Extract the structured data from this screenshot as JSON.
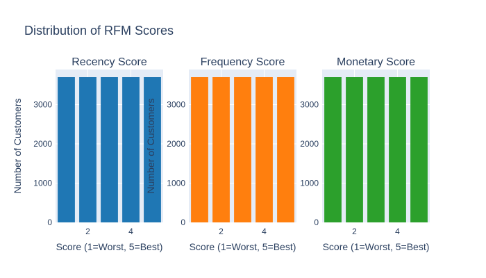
{
  "figure": {
    "title": "Distribution of RFM Scores",
    "background": "#ffffff",
    "plot_background": "#e5ecf6",
    "grid_color": "#ffffff",
    "text_color": "#2a3f5f"
  },
  "chart_data": [
    {
      "type": "bar",
      "title": "Recency Score",
      "categories": [
        1,
        2,
        3,
        4,
        5
      ],
      "values": [
        3700,
        3700,
        3700,
        3700,
        3700
      ],
      "color": "#1f77b4",
      "xlabel": "Score (1=Worst, 5=Best)",
      "ylabel": "Number of Customers",
      "xlim": [
        0.5,
        5.5
      ],
      "ylim": [
        0,
        3895
      ],
      "xticks": [
        2,
        4
      ],
      "yticks": [
        0,
        1000,
        2000,
        3000
      ],
      "grid": true
    },
    {
      "type": "bar",
      "title": "Frequency Score",
      "categories": [
        1,
        2,
        3,
        4,
        5
      ],
      "values": [
        3700,
        3700,
        3700,
        3700,
        3700
      ],
      "color": "#ff7f0e",
      "xlabel": "Score (1=Worst, 5=Best)",
      "ylabel": "Number of Customers",
      "xlim": [
        0.5,
        5.5
      ],
      "ylim": [
        0,
        3895
      ],
      "xticks": [
        2,
        4
      ],
      "yticks": [
        0,
        1000,
        2000,
        3000
      ],
      "grid": true
    },
    {
      "type": "bar",
      "title": "Monetary Score",
      "categories": [
        1,
        2,
        3,
        4,
        5
      ],
      "values": [
        3700,
        3700,
        3700,
        3700,
        3700
      ],
      "color": "#2ca02c",
      "xlabel": "Score (1=Worst, 5=Best)",
      "ylabel": "",
      "xlim": [
        0.5,
        5.5
      ],
      "ylim": [
        0,
        3895
      ],
      "xticks": [
        2,
        4
      ],
      "yticks": [
        0,
        1000,
        2000,
        3000
      ],
      "grid": true
    }
  ]
}
